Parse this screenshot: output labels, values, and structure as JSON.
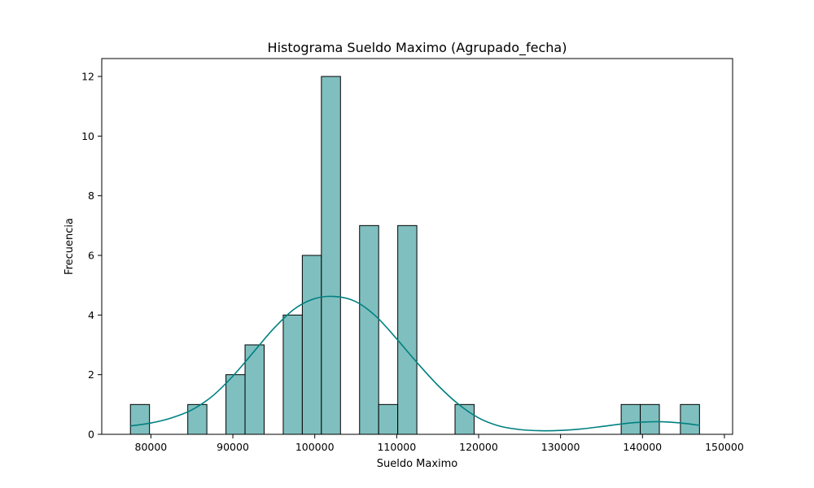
{
  "chart_data": {
    "type": "bar",
    "title": "Histograma Sueldo Maximo (Agrupado_fecha)",
    "xlabel": "Sueldo Maximo",
    "ylabel": "Frecuencia",
    "xlim": [
      74000,
      151000
    ],
    "ylim": [
      0,
      12.6
    ],
    "xticks": [
      80000,
      90000,
      100000,
      110000,
      120000,
      130000,
      140000,
      150000
    ],
    "yticks": [
      0,
      2,
      4,
      6,
      8,
      10,
      12
    ],
    "bin_width": 2330,
    "bins": [
      {
        "start": 77500,
        "count": 1
      },
      {
        "start": 84500,
        "count": 1
      },
      {
        "start": 89160,
        "count": 2
      },
      {
        "start": 91490,
        "count": 3
      },
      {
        "start": 96150,
        "count": 4
      },
      {
        "start": 98480,
        "count": 6
      },
      {
        "start": 100810,
        "count": 12
      },
      {
        "start": 105470,
        "count": 7
      },
      {
        "start": 107800,
        "count": 1
      },
      {
        "start": 110130,
        "count": 7
      },
      {
        "start": 117120,
        "count": 1
      },
      {
        "start": 137400,
        "count": 1
      },
      {
        "start": 139730,
        "count": 1
      },
      {
        "start": 144630,
        "count": 1
      }
    ],
    "kde": {
      "color": "#008080",
      "x": [
        77500,
        80000,
        82500,
        85000,
        87500,
        90000,
        92500,
        95000,
        97500,
        100000,
        102500,
        105000,
        107500,
        110000,
        112500,
        115000,
        117500,
        120000,
        122500,
        125000,
        127500,
        130000,
        132500,
        135000,
        137500,
        140000,
        142500,
        145000,
        147000
      ],
      "y": [
        0.28,
        0.38,
        0.55,
        0.82,
        1.28,
        1.95,
        2.75,
        3.55,
        4.2,
        4.55,
        4.62,
        4.45,
        3.95,
        3.2,
        2.4,
        1.65,
        1.02,
        0.55,
        0.28,
        0.16,
        0.12,
        0.13,
        0.18,
        0.26,
        0.35,
        0.41,
        0.42,
        0.37,
        0.3
      ]
    },
    "bar_color": "#80bfbf",
    "grid": false
  }
}
